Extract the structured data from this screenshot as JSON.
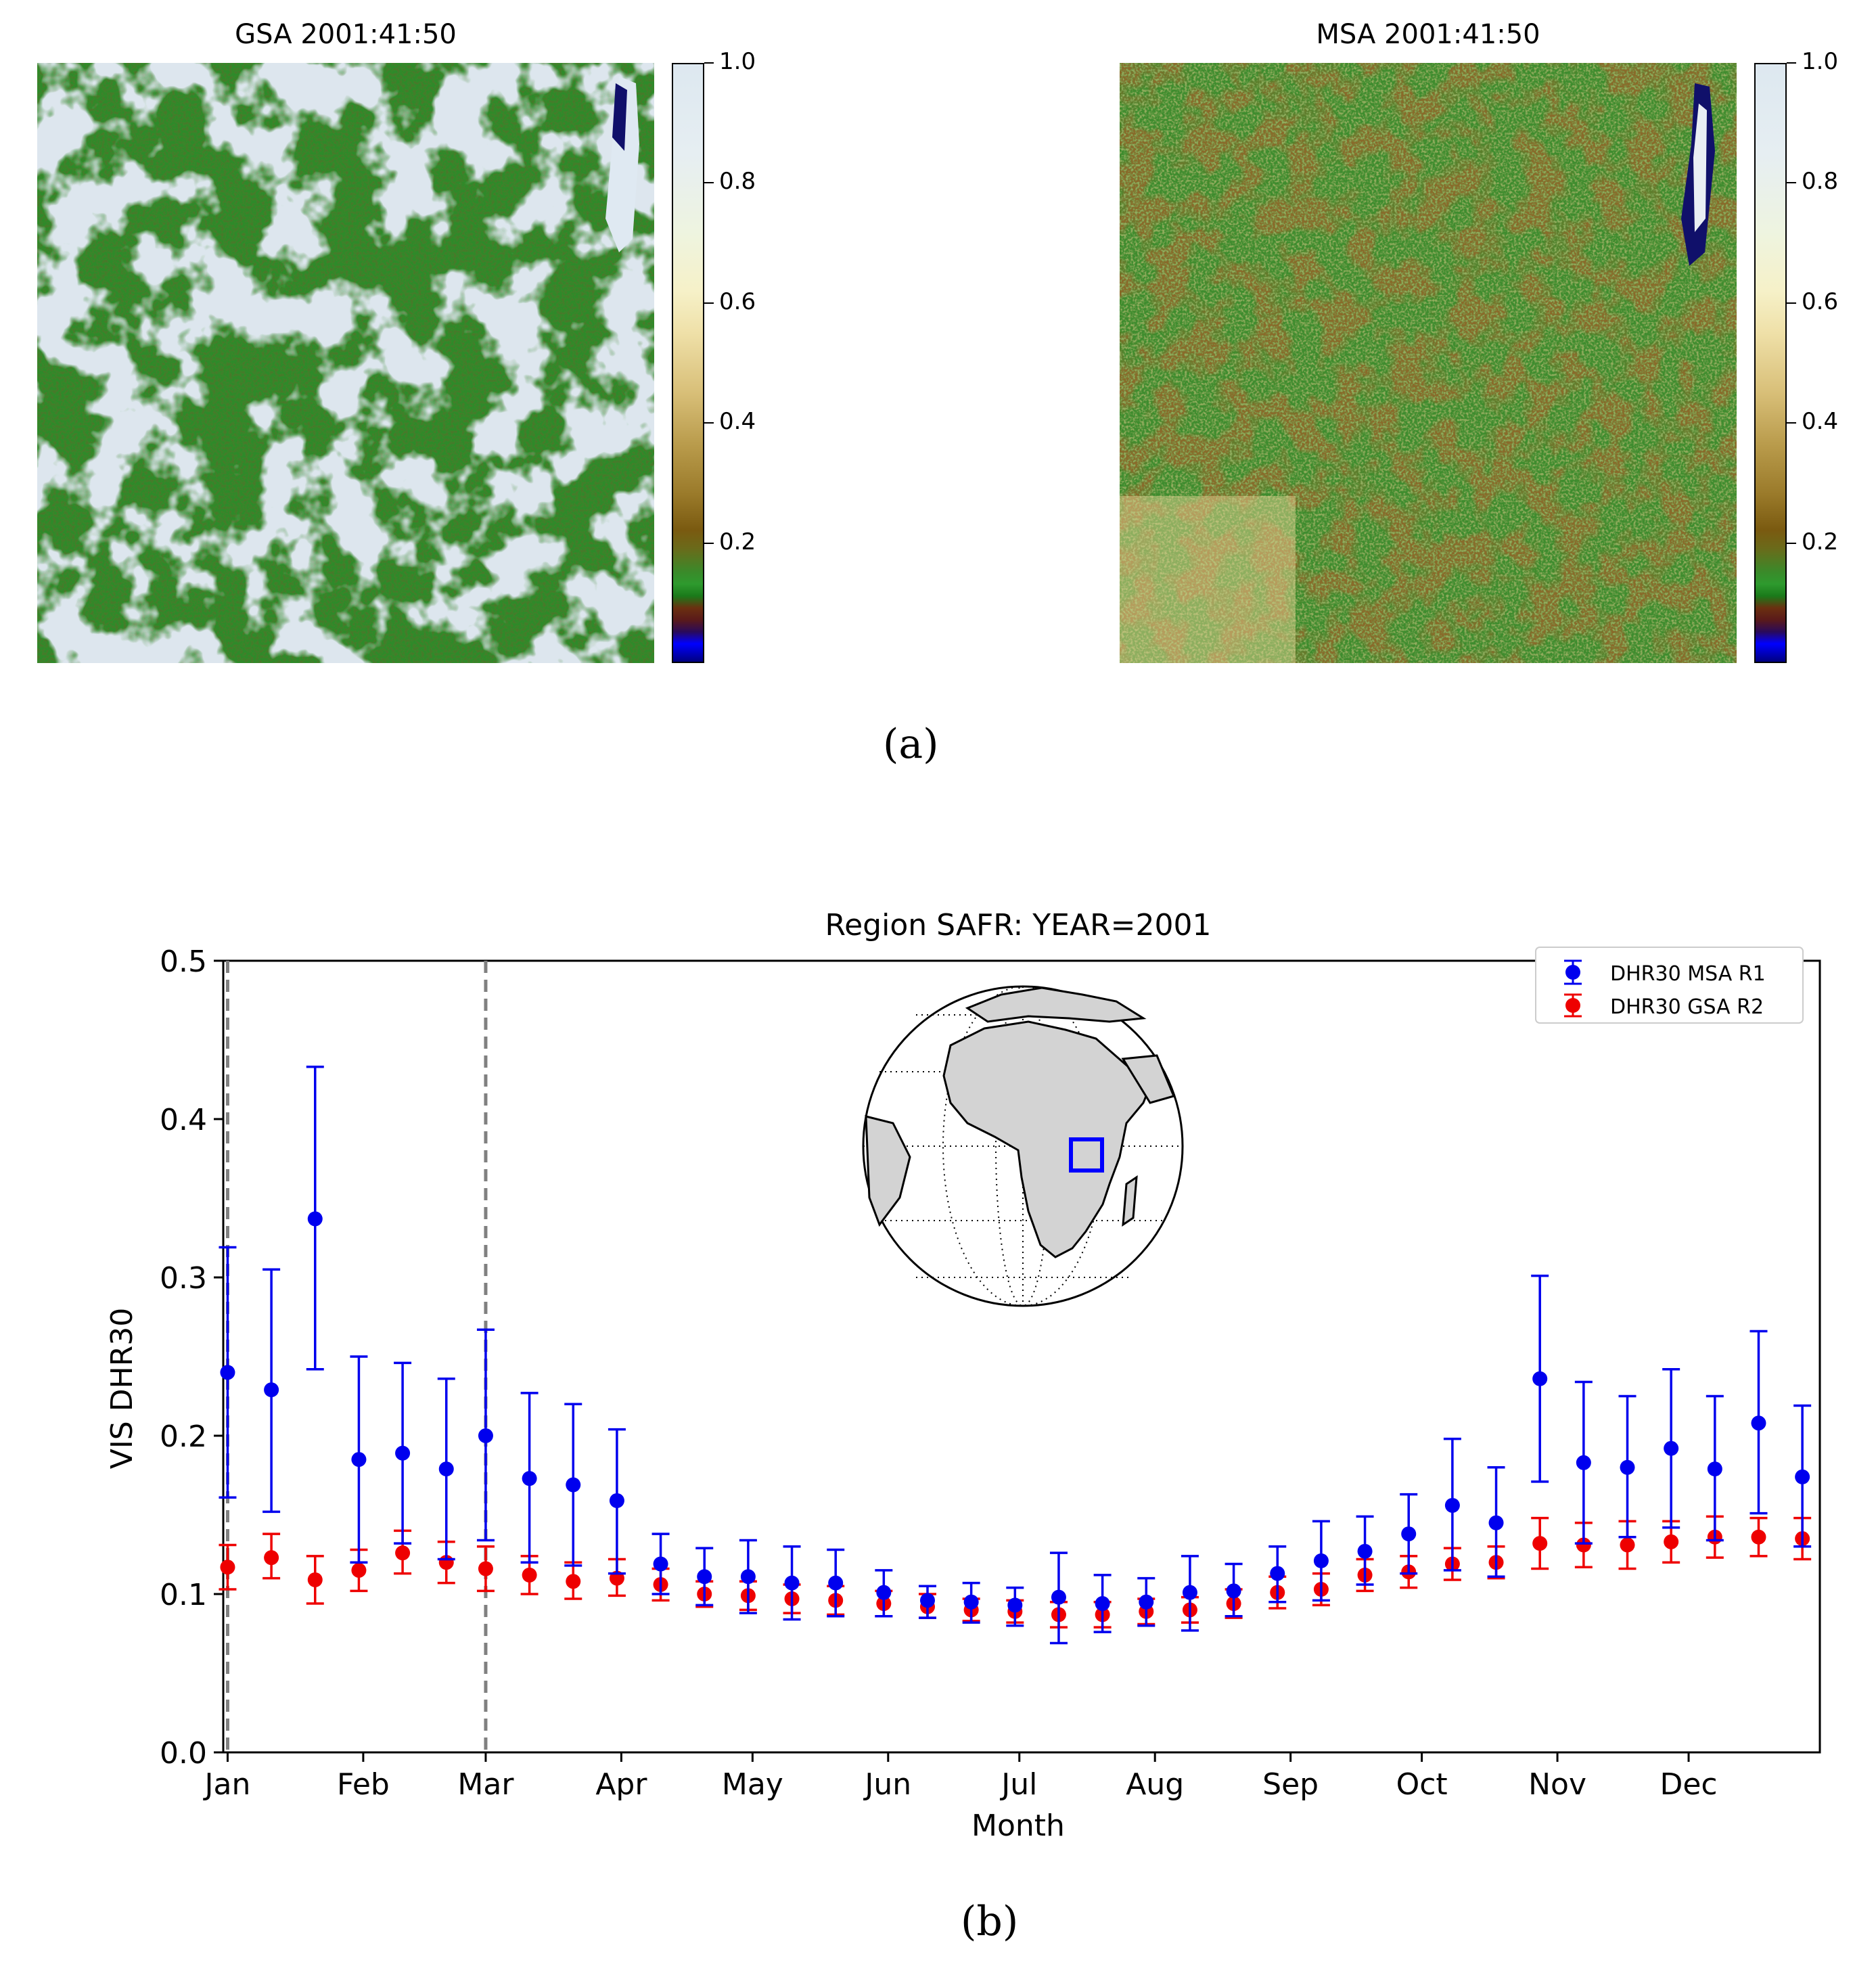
{
  "figure_a": {
    "label": "(a)",
    "panels": [
      {
        "id": "gsa",
        "title": "GSA 2001:41:50"
      },
      {
        "id": "msa",
        "title": "MSA 2001:41:50"
      }
    ],
    "colorbar": {
      "ticks": [
        "1.0",
        "0.8",
        "0.6",
        "0.4",
        "0.2"
      ],
      "tick_values": [
        1.0,
        0.8,
        0.6,
        0.4,
        0.2
      ],
      "range": [
        0,
        1
      ]
    }
  },
  "figure_b": {
    "label": "(b)"
  },
  "colors": {
    "msa": "#0000ee",
    "gsa": "#ee0000",
    "vline": "#808080",
    "globe_land": "#d3d3d3",
    "region_box": "#0000ff"
  },
  "chart_data": {
    "type": "scatter",
    "title": "Region SAFR: YEAR=2001",
    "xlabel": "Month",
    "ylabel": "VIS DHR30",
    "ylim": [
      0.0,
      0.5
    ],
    "yticks": [
      "0.0",
      "0.1",
      "0.2",
      "0.3",
      "0.4",
      "0.5"
    ],
    "ytick_values": [
      0.0,
      0.1,
      0.2,
      0.3,
      0.4,
      0.5
    ],
    "xlim": [
      0,
      365
    ],
    "month_ticks": [
      "Jan",
      "Feb",
      "Mar",
      "Apr",
      "May",
      "Jun",
      "Jul",
      "Aug",
      "Sep",
      "Oct",
      "Nov",
      "Dec"
    ],
    "month_tick_days": [
      1,
      32,
      60,
      91,
      121,
      152,
      182,
      213,
      244,
      274,
      305,
      335
    ],
    "vlines_days": [
      1,
      60
    ],
    "legend_position": "top-right",
    "series": [
      {
        "name": "DHR30 MSA R1",
        "color_key": "msa",
        "x": [
          1,
          11,
          21,
          31,
          41,
          51,
          60,
          70,
          80,
          90,
          100,
          110,
          120,
          130,
          140,
          151,
          161,
          171,
          181,
          191,
          201,
          211,
          221,
          231,
          241,
          251,
          261,
          271,
          281,
          291,
          301,
          311,
          321,
          331,
          341,
          351,
          361
        ],
        "y": [
          0.24,
          0.229,
          0.337,
          0.185,
          0.189,
          0.179,
          0.2,
          0.173,
          0.169,
          0.159,
          0.119,
          0.111,
          0.111,
          0.107,
          0.107,
          0.101,
          0.096,
          0.095,
          0.093,
          0.098,
          0.094,
          0.095,
          0.101,
          0.102,
          0.113,
          0.121,
          0.127,
          0.138,
          0.156,
          0.145,
          0.236,
          0.183,
          0.18,
          0.192,
          0.179,
          0.208,
          0.174
        ],
        "err_low": [
          0.161,
          0.152,
          0.242,
          0.12,
          0.132,
          0.122,
          0.134,
          0.12,
          0.118,
          0.113,
          0.1,
          0.093,
          0.088,
          0.084,
          0.086,
          0.086,
          0.085,
          0.082,
          0.08,
          0.069,
          0.076,
          0.08,
          0.077,
          0.086,
          0.095,
          0.096,
          0.106,
          0.113,
          0.115,
          0.111,
          0.171,
          0.132,
          0.136,
          0.142,
          0.134,
          0.151,
          0.13
        ],
        "err_high": [
          0.319,
          0.305,
          0.433,
          0.25,
          0.246,
          0.236,
          0.267,
          0.227,
          0.22,
          0.204,
          0.138,
          0.129,
          0.134,
          0.13,
          0.128,
          0.115,
          0.105,
          0.107,
          0.104,
          0.126,
          0.112,
          0.11,
          0.124,
          0.119,
          0.13,
          0.146,
          0.149,
          0.163,
          0.198,
          0.18,
          0.301,
          0.234,
          0.225,
          0.242,
          0.225,
          0.266,
          0.219
        ]
      },
      {
        "name": "DHR30 GSA R2",
        "color_key": "gsa",
        "x": [
          1,
          11,
          21,
          31,
          41,
          51,
          60,
          70,
          80,
          90,
          100,
          110,
          120,
          130,
          140,
          151,
          161,
          171,
          181,
          191,
          201,
          211,
          221,
          231,
          241,
          251,
          261,
          271,
          281,
          291,
          301,
          311,
          321,
          331,
          341,
          351,
          361
        ],
        "y": [
          0.117,
          0.123,
          0.109,
          0.115,
          0.126,
          0.12,
          0.116,
          0.112,
          0.108,
          0.11,
          0.106,
          0.1,
          0.099,
          0.097,
          0.096,
          0.094,
          0.092,
          0.09,
          0.089,
          0.087,
          0.087,
          0.089,
          0.09,
          0.094,
          0.101,
          0.103,
          0.112,
          0.114,
          0.119,
          0.12,
          0.132,
          0.131,
          0.131,
          0.133,
          0.136,
          0.136,
          0.135
        ],
        "err_low": [
          0.103,
          0.11,
          0.094,
          0.102,
          0.113,
          0.107,
          0.102,
          0.1,
          0.097,
          0.099,
          0.096,
          0.092,
          0.09,
          0.088,
          0.087,
          0.086,
          0.085,
          0.083,
          0.082,
          0.079,
          0.079,
          0.081,
          0.082,
          0.085,
          0.091,
          0.093,
          0.102,
          0.104,
          0.109,
          0.11,
          0.116,
          0.117,
          0.116,
          0.12,
          0.123,
          0.124,
          0.122
        ],
        "err_high": [
          0.131,
          0.138,
          0.124,
          0.128,
          0.14,
          0.133,
          0.13,
          0.124,
          0.12,
          0.122,
          0.116,
          0.108,
          0.108,
          0.106,
          0.105,
          0.102,
          0.1,
          0.097,
          0.096,
          0.095,
          0.095,
          0.097,
          0.098,
          0.103,
          0.111,
          0.113,
          0.122,
          0.124,
          0.129,
          0.13,
          0.148,
          0.145,
          0.146,
          0.146,
          0.149,
          0.148,
          0.148
        ]
      }
    ]
  }
}
